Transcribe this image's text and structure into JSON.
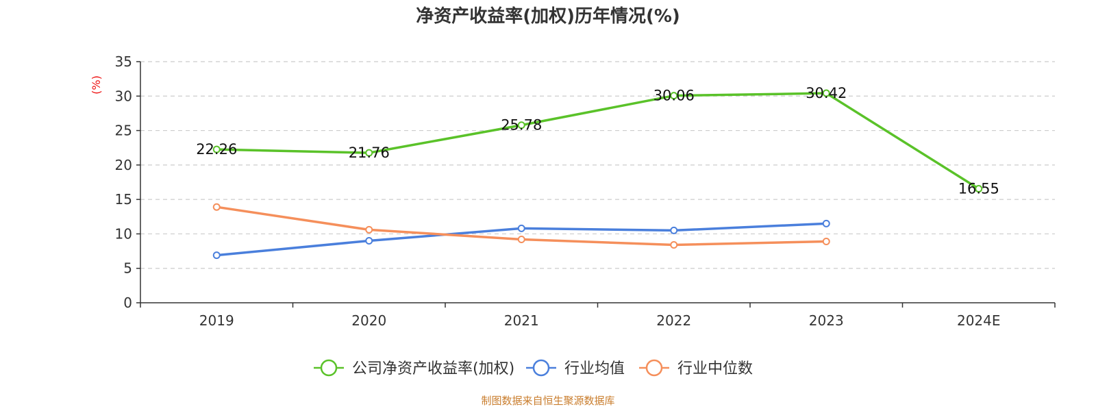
{
  "chart_data": {
    "type": "line",
    "title": "净资产收益率(加权)历年情况(%)",
    "ylabel": "(%)",
    "categories": [
      "2019",
      "2020",
      "2021",
      "2022",
      "2023",
      "2024E"
    ],
    "ylim": [
      0,
      35
    ],
    "yticks": [
      0,
      5,
      10,
      15,
      20,
      25,
      30,
      35
    ],
    "grid": true,
    "legend_position": "bottom",
    "series": [
      {
        "name": "公司净资产收益率(加权)",
        "color": "#5ac229",
        "labels": true,
        "values": [
          22.26,
          21.76,
          25.78,
          30.06,
          30.42,
          16.55
        ]
      },
      {
        "name": "行业均值",
        "color": "#4a7fdc",
        "labels": false,
        "values": [
          6.9,
          9.0,
          10.8,
          10.5,
          11.5,
          null
        ]
      },
      {
        "name": "行业中位数",
        "color": "#f58f5b",
        "labels": false,
        "values": [
          13.9,
          10.6,
          9.2,
          8.4,
          8.9,
          null
        ]
      }
    ]
  },
  "source": "制图数据来自恒生聚源数据库"
}
